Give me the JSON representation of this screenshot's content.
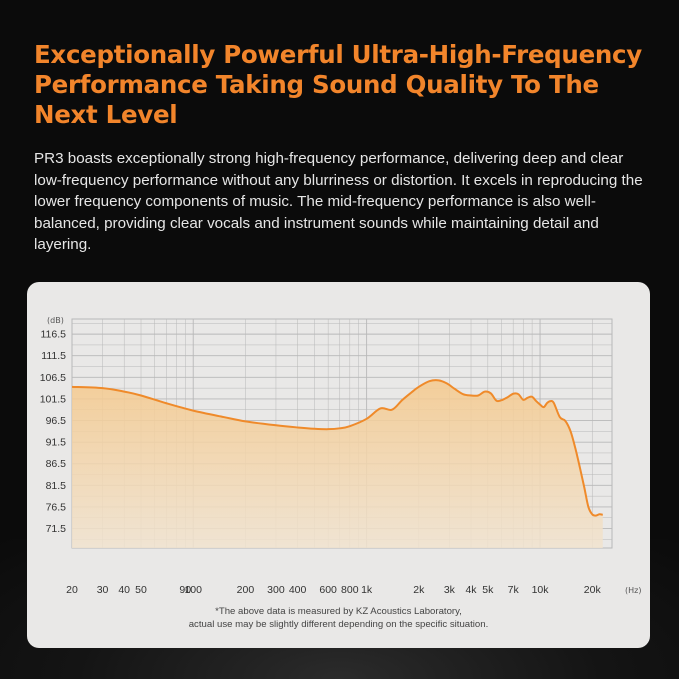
{
  "headline": "Exceptionally Powerful Ultra-High-Frequency Performance Taking Sound Quality To The Next Level",
  "description": "PR3 boasts exceptionally strong high-frequency performance, delivering deep and clear low-frequency performance without any blurriness or distortion. It excels in reproducing the lower frequency components of music. The mid-frequency performance is also well-balanced, providing clear vocals and instrument sounds while maintaining detail and layering.",
  "footnote": {
    "line1": "*The above data is measured by KZ Acoustics Laboratory,",
    "line2": "actual use may be slightly different depending on the specific situation."
  },
  "colors": {
    "accent": "#f2852b",
    "curve": "#ef8a2a",
    "fill_top": "#f5c98c",
    "fill_bottom": "#f1e3cf",
    "grid": "#b8b8b8",
    "card": "#e9e8e7"
  },
  "chart_data": {
    "type": "area",
    "title": "",
    "xlabel": "",
    "ylabel": "",
    "x_unit": "(Hz)",
    "y_unit": "(dB)",
    "x_scale": "log",
    "xlim": [
      20,
      26000
    ],
    "ylim": [
      67,
      120
    ],
    "grid": true,
    "y_ticks": [
      116.5,
      111.5,
      106.5,
      101.5,
      96.5,
      91.5,
      86.5,
      81.5,
      76.5,
      71.5
    ],
    "y_tick_labels": [
      "116.5",
      "111.5",
      "106.5",
      "101.5",
      "96.5",
      "91.5",
      "86.5",
      "81.5",
      "76.5",
      "71.5"
    ],
    "x_ticks": [
      20,
      30,
      40,
      50,
      90,
      100,
      200,
      300,
      400,
      600,
      800,
      1000,
      2000,
      3000,
      4000,
      5000,
      7000,
      10000,
      20000
    ],
    "x_tick_labels": [
      "20",
      "30",
      "40",
      "50",
      "90",
      "100",
      "200",
      "300",
      "400",
      "600",
      "800",
      "1k",
      "2k",
      "3k",
      "4k",
      "5k",
      "7k",
      "10k",
      "20k"
    ],
    "series": [
      {
        "x": [
          20,
          30,
          40,
          50,
          70,
          100,
          150,
          200,
          300,
          400,
          500,
          600,
          700,
          800,
          1000,
          1200,
          1400,
          1600,
          1800,
          2000,
          2300,
          2600,
          2900,
          3200,
          3600,
          4000,
          4400,
          4800,
          5200,
          5600,
          6000,
          6500,
          7000,
          7500,
          8000,
          8500,
          9000,
          9500,
          10000,
          10500,
          11000,
          11500,
          12000,
          13000,
          14000,
          15000,
          16000,
          17000,
          18000,
          19000,
          20000,
          21000,
          22000,
          23000
        ],
        "y": [
          104.3,
          104.0,
          103.2,
          102.3,
          100.5,
          98.8,
          97.3,
          96.3,
          95.4,
          94.9,
          94.6,
          94.5,
          94.7,
          95.2,
          96.9,
          99.3,
          99.0,
          101.2,
          102.9,
          104.3,
          105.6,
          105.8,
          105.1,
          103.9,
          102.6,
          102.3,
          102.3,
          103.2,
          102.8,
          101.1,
          101.2,
          101.9,
          102.7,
          102.6,
          101.3,
          101.8,
          102.0,
          101.0,
          100.2,
          99.6,
          100.6,
          101.0,
          100.6,
          97.3,
          96.4,
          94.0,
          90.0,
          85.5,
          81.0,
          76.5,
          74.8,
          74.5,
          74.8,
          74.7
        ]
      }
    ]
  }
}
